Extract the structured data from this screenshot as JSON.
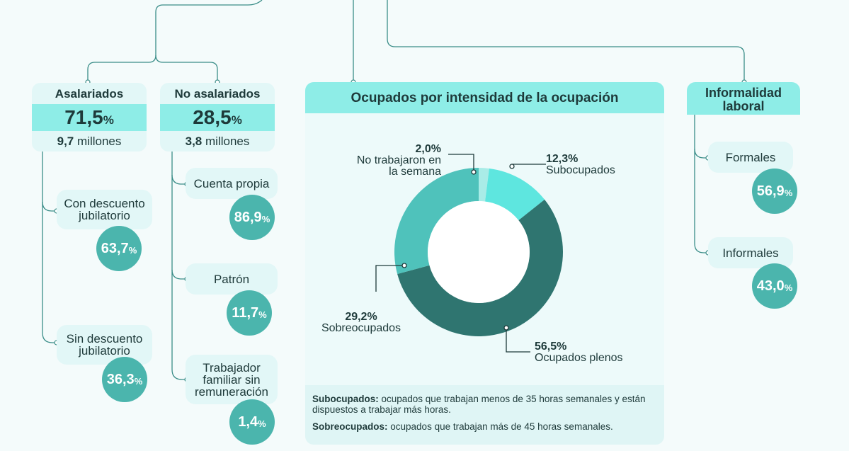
{
  "asalariados": {
    "title": "Asalariados",
    "pct": "71,5",
    "unit": "%",
    "count_value": "9,7",
    "count_unit": "millones"
  },
  "no_asalariados": {
    "title": "No asalariados",
    "pct": "28,5",
    "unit": "%",
    "count_value": "3,8",
    "count_unit": "millones"
  },
  "asalariados_breakdown": [
    {
      "label": "Con descuento jubilatorio",
      "value": "63,7",
      "unit": "%"
    },
    {
      "label": "Sin descuento jubilatorio",
      "value": "36,3",
      "unit": "%"
    }
  ],
  "no_asalariados_breakdown": [
    {
      "label": "Cuenta propia",
      "value": "86,9",
      "unit": "%"
    },
    {
      "label": "Patrón",
      "value": "11,7",
      "unit": "%"
    },
    {
      "label": "Trabajador familiar sin remuneración",
      "value": "1,4",
      "unit": "%"
    }
  ],
  "intensidad": {
    "title": "Ocupados por intensidad de la ocupación",
    "labels": [
      {
        "pct": "2,0%",
        "name": "No trabajaron en la semana"
      },
      {
        "pct": "12,3%",
        "name": "Subocupados"
      },
      {
        "pct": "56,5%",
        "name": "Ocupados plenos"
      },
      {
        "pct": "29,2%",
        "name": "Sobreocupados"
      }
    ],
    "notes": [
      {
        "term": "Subocupados:",
        "text": " ocupados que trabajan menos de 35 horas semanales y están dispuestos a trabajar más horas."
      },
      {
        "term": "Sobreocupados:",
        "text": " ocupados que trabajan más de 45 horas semanales."
      }
    ]
  },
  "chart_data": {
    "type": "pie",
    "donut": true,
    "categories": [
      "No trabajaron en la semana",
      "Subocupados",
      "Ocupados plenos",
      "Sobreocupados"
    ],
    "values": [
      2.0,
      12.3,
      56.5,
      29.2
    ],
    "colors": [
      "#a9ece7",
      "#5ee6df",
      "#2f7570",
      "#4fc2bb"
    ]
  },
  "informalidad": {
    "title": "Informalidad laboral",
    "items": [
      {
        "label": "Formales",
        "value": "56,9",
        "unit": "%"
      },
      {
        "label": "Informales",
        "value": "43,0",
        "unit": "%"
      }
    ]
  }
}
